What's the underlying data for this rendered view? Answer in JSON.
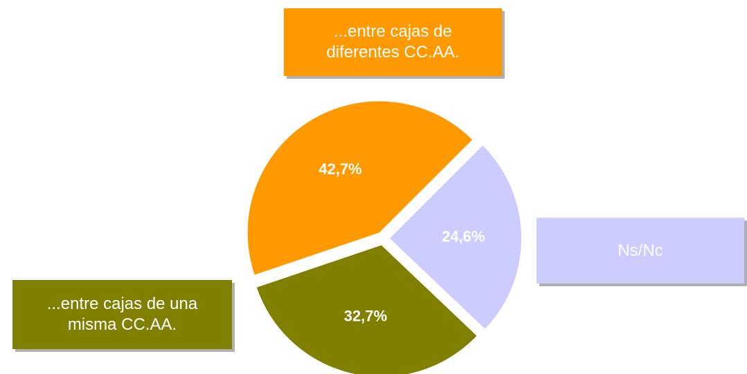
{
  "chart_data": {
    "type": "pie",
    "categories": [
      "Ns/Nc",
      "...entre cajas de una misma CC.AA.",
      "...entre cajas de diferentes CC.AA."
    ],
    "values": [
      24.6,
      32.7,
      42.7
    ],
    "value_labels": [
      "24,6%",
      "32,7%",
      "42,7%"
    ],
    "colors": [
      "#ccccff",
      "#808000",
      "#ff9900"
    ]
  }
}
